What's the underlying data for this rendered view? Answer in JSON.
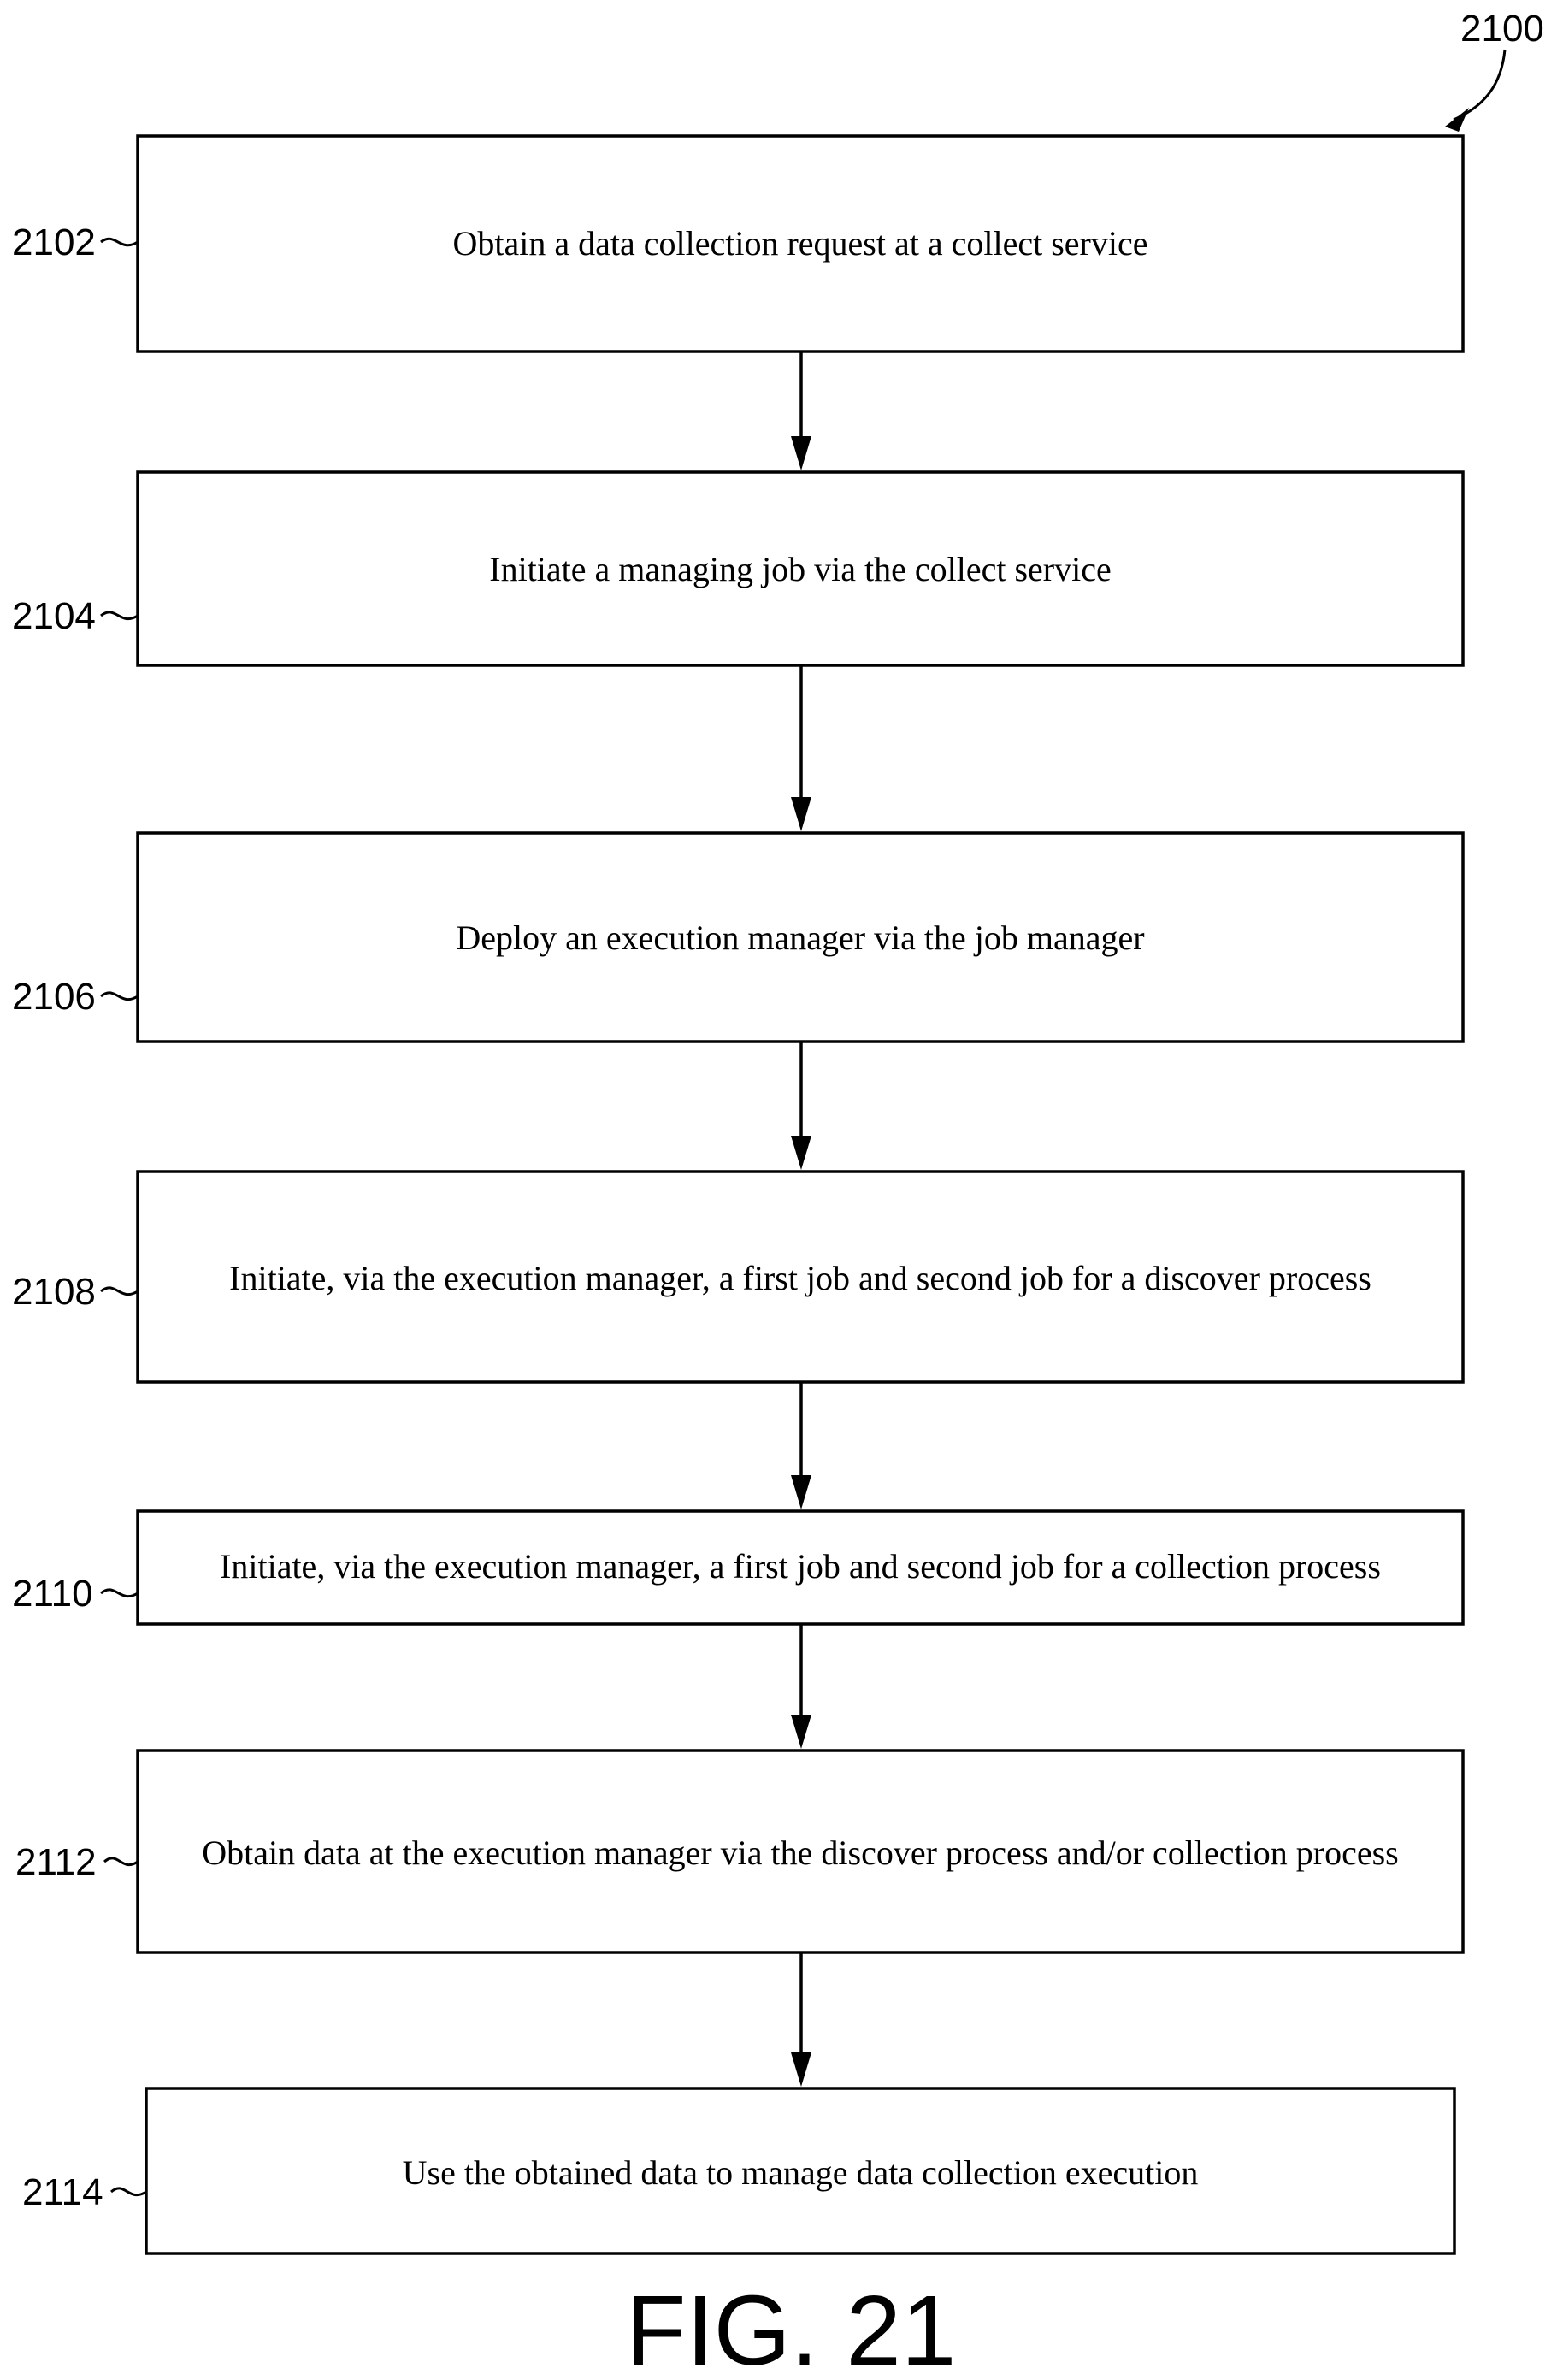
{
  "figure": {
    "ref_number": "2100",
    "caption": "FIG. 21",
    "steps": [
      {
        "ref": "2102",
        "text": "Obtain a data collection request at a collect service"
      },
      {
        "ref": "2104",
        "text": "Initiate a managing job via the collect service"
      },
      {
        "ref": "2106",
        "text": "Deploy an execution manager via the job manager"
      },
      {
        "ref": "2108",
        "text": "Initiate, via the execution manager, a first job and second job for a discover process"
      },
      {
        "ref": "2110",
        "text": "Initiate, via the execution manager, a first job and second job for a collection process"
      },
      {
        "ref": "2112",
        "text": "Obtain data at the execution manager via the discover process and/or collection process"
      },
      {
        "ref": "2114",
        "text": "Use the obtained data to manage data collection execution"
      }
    ]
  }
}
